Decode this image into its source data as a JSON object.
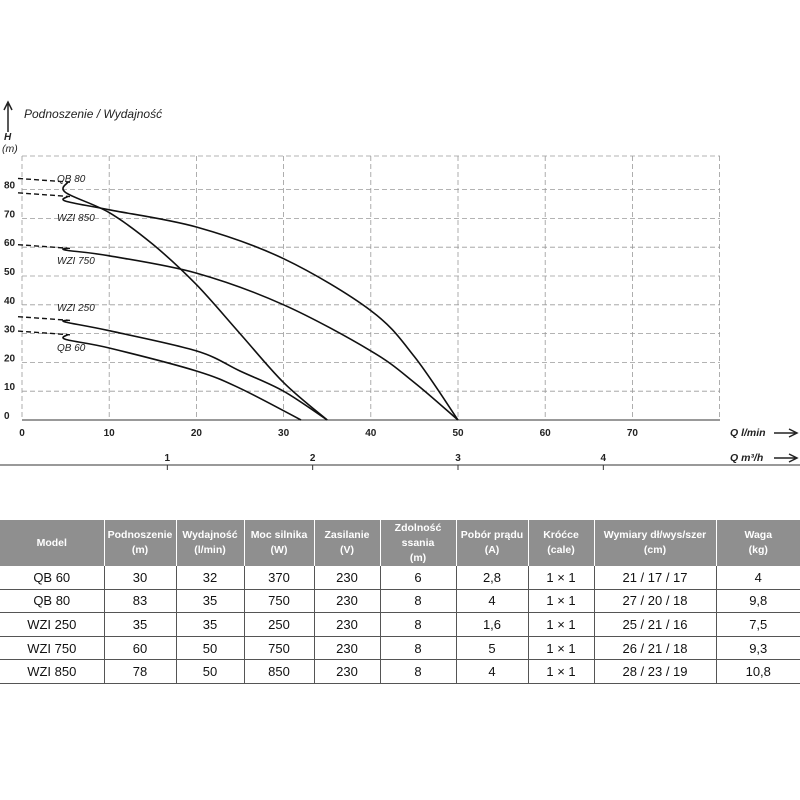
{
  "chart_data": {
    "type": "line",
    "title": "Podnoszenie / Wydajność",
    "ylabel": "H",
    "yunit": "(m)",
    "xlabel": "Q l/min",
    "x2label": "Q m³/h",
    "xlim": [
      0,
      80
    ],
    "ylim": [
      0,
      85
    ],
    "x_ticks": [
      0,
      10,
      20,
      30,
      40,
      50,
      60,
      70
    ],
    "y_ticks": [
      0,
      10,
      20,
      30,
      40,
      50,
      60,
      70,
      80
    ],
    "x2_ticks": [
      1,
      2,
      3,
      4
    ],
    "grid": true,
    "series": [
      {
        "name": "QB 80",
        "x": [
          0,
          5,
          10,
          15,
          20,
          25,
          30,
          35
        ],
        "y": [
          83,
          79,
          72,
          61,
          47,
          30,
          13,
          0
        ]
      },
      {
        "name": "WZI 850",
        "x": [
          0,
          5,
          10,
          20,
          30,
          40,
          45,
          50
        ],
        "y": [
          78,
          76,
          73,
          67,
          56,
          38,
          22,
          0
        ]
      },
      {
        "name": "WZI 750",
        "x": [
          0,
          5,
          10,
          20,
          30,
          40,
          45,
          50
        ],
        "y": [
          60,
          59,
          57,
          51,
          40,
          24,
          13,
          0
        ]
      },
      {
        "name": "WZI 250",
        "x": [
          0,
          5,
          10,
          20,
          25,
          30,
          35
        ],
        "y": [
          35,
          34,
          31,
          24,
          17,
          10,
          0
        ]
      },
      {
        "name": "QB 60",
        "x": [
          0,
          5,
          10,
          20,
          25,
          32
        ],
        "y": [
          30,
          28,
          25,
          17,
          11,
          0
        ]
      }
    ]
  },
  "table": {
    "headers": [
      [
        "Model",
        ""
      ],
      [
        "Podnoszenie",
        "(m)"
      ],
      [
        "Wydajność",
        "(l/min)"
      ],
      [
        "Moc silnika",
        "(W)"
      ],
      [
        "Zasilanie",
        "(V)"
      ],
      [
        "Zdolność ssania",
        "(m)"
      ],
      [
        "Pobór prądu",
        "(A)"
      ],
      [
        "Króćce",
        "(cale)"
      ],
      [
        "Wymiary dł/wys/szer",
        "(cm)"
      ],
      [
        "Waga",
        "(kg)"
      ]
    ],
    "rows": [
      [
        "QB 60",
        "30",
        "32",
        "370",
        "230",
        "6",
        "2,8",
        "1 × 1",
        "21 / 17 / 17",
        "4"
      ],
      [
        "QB 80",
        "83",
        "35",
        "750",
        "230",
        "8",
        "4",
        "1 × 1",
        "27 / 20 / 18",
        "9,8"
      ],
      [
        "WZI 250",
        "35",
        "35",
        "250",
        "230",
        "8",
        "1,6",
        "1 × 1",
        "25 / 21 / 16",
        "7,5"
      ],
      [
        "WZI 750",
        "60",
        "50",
        "750",
        "230",
        "8",
        "5",
        "1 × 1",
        "26 / 21 / 18",
        "9,3"
      ],
      [
        "WZI 850",
        "78",
        "50",
        "850",
        "230",
        "8",
        "4",
        "1 × 1",
        "28 / 23 / 19",
        "10,8"
      ]
    ]
  }
}
